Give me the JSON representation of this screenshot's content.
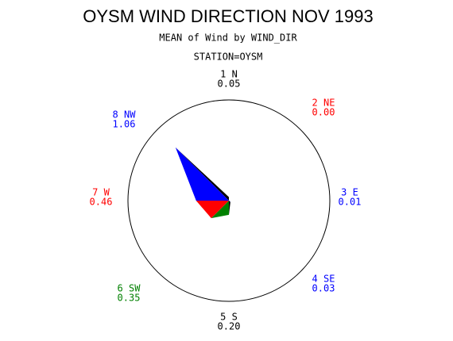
{
  "chart_data": {
    "type": "star",
    "title": "OYSM WIND DIRECTION NOV 1993",
    "subtitle": "MEAN of Wind by WIND_DIR",
    "station": "STATION=OYSM",
    "categories": [
      "1 N",
      "2 NE",
      "3 E",
      "4 SE",
      "5 S",
      "6 SW",
      "7 W",
      "8 NW"
    ],
    "values": [
      0.05,
      0.0,
      0.01,
      0.03,
      0.2,
      0.35,
      0.46,
      1.06
    ],
    "value_labels": [
      "0.05",
      "0.00",
      "0.01",
      "0.03",
      "0.20",
      "0.35",
      "0.46",
      "1.06"
    ],
    "colors": [
      "#000000",
      "#ff0000",
      "#0000ff",
      "#0000ff",
      "#000000",
      "#008000",
      "#ff0000",
      "#0000ff"
    ]
  }
}
